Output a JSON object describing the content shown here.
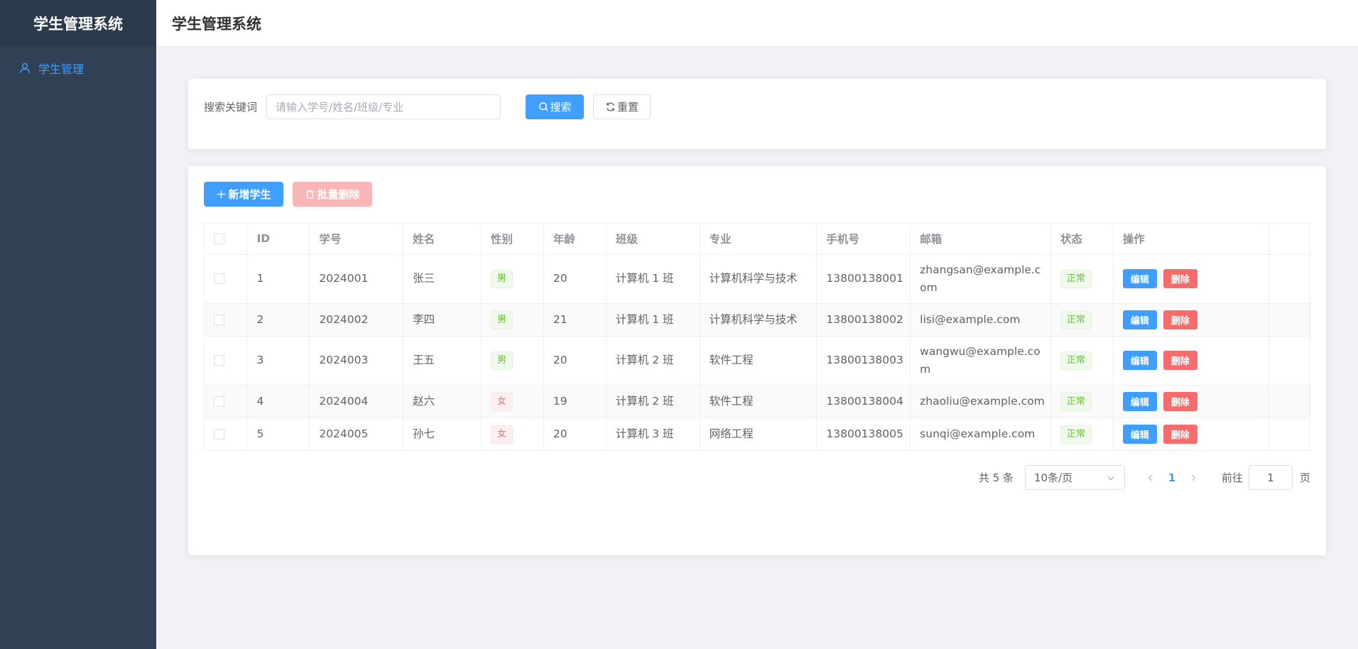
{
  "app": {
    "title": "学生管理系统"
  },
  "sidebar": {
    "items": [
      {
        "label": "学生管理",
        "icon": "user-icon"
      }
    ]
  },
  "header": {
    "title": "学生管理系统"
  },
  "search": {
    "label": "搜索关键词",
    "placeholder": "请输入学号/姓名/班级/专业",
    "value": "",
    "search_label": "搜索",
    "reset_label": "重置"
  },
  "toolbar": {
    "add_label": "新增学生",
    "batch_delete_label": "批量删除"
  },
  "table": {
    "headers": [
      "ID",
      "学号",
      "姓名",
      "性别",
      "年龄",
      "班级",
      "专业",
      "手机号",
      "邮箱",
      "状态",
      "操作"
    ],
    "edit_label": "编辑",
    "delete_label": "删除",
    "rows": [
      {
        "id": "1",
        "student_no": "2024001",
        "name": "张三",
        "gender": "男",
        "age": "20",
        "class": "计算机 1 班",
        "major": "计算机科学与技术",
        "phone": "13800138001",
        "email": "zhangsan@example.com",
        "status": "正常"
      },
      {
        "id": "2",
        "student_no": "2024002",
        "name": "李四",
        "gender": "男",
        "age": "21",
        "class": "计算机 1 班",
        "major": "计算机科学与技术",
        "phone": "13800138002",
        "email": "lisi@example.com",
        "status": "正常"
      },
      {
        "id": "3",
        "student_no": "2024003",
        "name": "王五",
        "gender": "男",
        "age": "20",
        "class": "计算机 2 班",
        "major": "软件工程",
        "phone": "13800138003",
        "email": "wangwu@example.com",
        "status": "正常"
      },
      {
        "id": "4",
        "student_no": "2024004",
        "name": "赵六",
        "gender": "女",
        "age": "19",
        "class": "计算机 2 班",
        "major": "软件工程",
        "phone": "13800138004",
        "email": "zhaoliu@example.com",
        "status": "正常"
      },
      {
        "id": "5",
        "student_no": "2024005",
        "name": "孙七",
        "gender": "女",
        "age": "20",
        "class": "计算机 3 班",
        "major": "网络工程",
        "phone": "13800138005",
        "email": "sunqi@example.com",
        "status": "正常"
      }
    ]
  },
  "pagination": {
    "total_text": "共 5 条",
    "page_size": "10条/页",
    "current_page": "1",
    "goto_label": "前往",
    "goto_value": "1",
    "goto_suffix": "页"
  },
  "colors": {
    "primary": "#409eff",
    "danger": "#f56c6c",
    "success": "#67c23a",
    "sidebar": "#304156"
  }
}
